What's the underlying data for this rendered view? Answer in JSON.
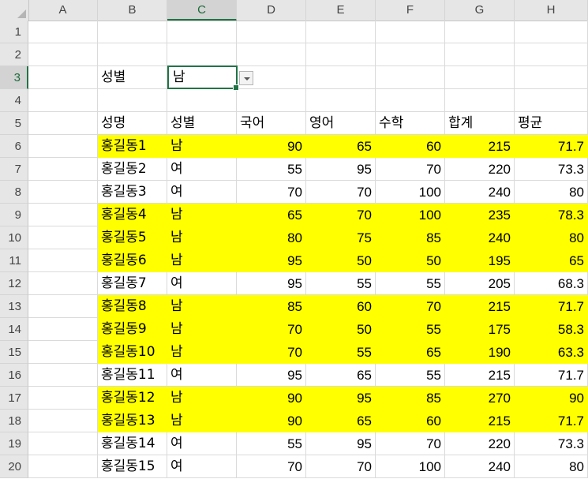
{
  "columns": [
    "A",
    "B",
    "C",
    "D",
    "E",
    "F",
    "G",
    "H"
  ],
  "rows": [
    "1",
    "2",
    "3",
    "4",
    "5",
    "6",
    "7",
    "8",
    "9",
    "10",
    "11",
    "12",
    "13",
    "14",
    "15",
    "16",
    "17",
    "18",
    "19",
    "20"
  ],
  "selected_column": "C",
  "selected_row": "3",
  "filter": {
    "label": "성별",
    "value": "남"
  },
  "table": {
    "headers": [
      "성명",
      "성별",
      "국어",
      "영어",
      "수학",
      "합계",
      "평균"
    ],
    "rows": [
      {
        "name": "홍길동1",
        "gender": "남",
        "korean": "90",
        "english": "65",
        "math": "60",
        "total": "215",
        "average": "71.7",
        "highlight": true
      },
      {
        "name": "홍길동2",
        "gender": "여",
        "korean": "55",
        "english": "95",
        "math": "70",
        "total": "220",
        "average": "73.3",
        "highlight": false
      },
      {
        "name": "홍길동3",
        "gender": "여",
        "korean": "70",
        "english": "70",
        "math": "100",
        "total": "240",
        "average": "80",
        "highlight": false
      },
      {
        "name": "홍길동4",
        "gender": "남",
        "korean": "65",
        "english": "70",
        "math": "100",
        "total": "235",
        "average": "78.3",
        "highlight": true
      },
      {
        "name": "홍길동5",
        "gender": "남",
        "korean": "80",
        "english": "75",
        "math": "85",
        "total": "240",
        "average": "80",
        "highlight": true
      },
      {
        "name": "홍길동6",
        "gender": "남",
        "korean": "95",
        "english": "50",
        "math": "50",
        "total": "195",
        "average": "65",
        "highlight": true
      },
      {
        "name": "홍길동7",
        "gender": "여",
        "korean": "95",
        "english": "55",
        "math": "55",
        "total": "205",
        "average": "68.3",
        "highlight": false
      },
      {
        "name": "홍길동8",
        "gender": "남",
        "korean": "85",
        "english": "60",
        "math": "70",
        "total": "215",
        "average": "71.7",
        "highlight": true
      },
      {
        "name": "홍길동9",
        "gender": "남",
        "korean": "70",
        "english": "50",
        "math": "55",
        "total": "175",
        "average": "58.3",
        "highlight": true
      },
      {
        "name": "홍길동10",
        "gender": "남",
        "korean": "70",
        "english": "55",
        "math": "65",
        "total": "190",
        "average": "63.3",
        "highlight": true
      },
      {
        "name": "홍길동11",
        "gender": "여",
        "korean": "95",
        "english": "65",
        "math": "55",
        "total": "215",
        "average": "71.7",
        "highlight": false
      },
      {
        "name": "홍길동12",
        "gender": "남",
        "korean": "90",
        "english": "95",
        "math": "85",
        "total": "270",
        "average": "90",
        "highlight": true
      },
      {
        "name": "홍길동13",
        "gender": "남",
        "korean": "90",
        "english": "65",
        "math": "60",
        "total": "215",
        "average": "71.7",
        "highlight": true
      },
      {
        "name": "홍길동14",
        "gender": "여",
        "korean": "55",
        "english": "95",
        "math": "70",
        "total": "220",
        "average": "73.3",
        "highlight": false
      },
      {
        "name": "홍길동15",
        "gender": "여",
        "korean": "70",
        "english": "70",
        "math": "100",
        "total": "240",
        "average": "80",
        "highlight": false
      }
    ]
  },
  "colors": {
    "highlight": "#ffff00",
    "accent": "#217346"
  }
}
